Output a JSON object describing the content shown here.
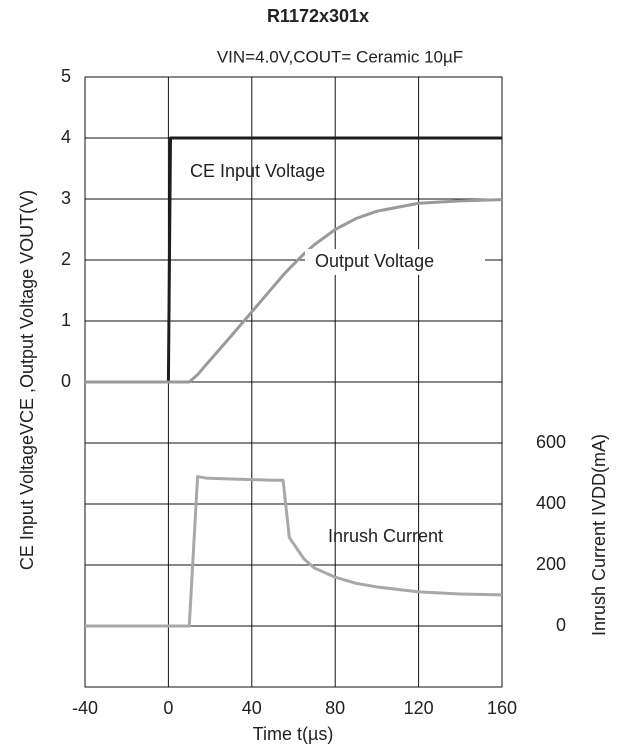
{
  "chart_data": {
    "type": "line",
    "title": "R1172x301x",
    "subtitle": "VIN=4.0V,COUT= Ceramic 10µF",
    "xlabel": "Time t(µs)",
    "ylabel": "CE Input VoltageVCE ,Output Voltage VOUT(V)",
    "y2label": "Inrush Current IVDD(mA)",
    "x": [
      -40,
      0,
      1,
      10,
      14,
      18,
      30,
      40,
      50,
      55,
      58,
      65,
      70,
      80,
      90,
      100,
      120,
      140,
      160
    ],
    "xlim": [
      -40,
      160
    ],
    "xticks": [
      -40,
      0,
      40,
      80,
      120,
      160
    ],
    "ylim": [
      -5,
      5
    ],
    "yticks": [
      0,
      1,
      2,
      3,
      4,
      5
    ],
    "y2lim": [
      -200,
      1800
    ],
    "y2ticks": [
      0,
      200,
      400,
      600
    ],
    "grid": true,
    "series": [
      {
        "name": "CE Input Voltage",
        "color": "#1e1e1e",
        "values": [
          0,
          0,
          4,
          4,
          4,
          4,
          4,
          4,
          4,
          4,
          4,
          4,
          4,
          4,
          4,
          4,
          4,
          4,
          4
        ]
      },
      {
        "name": "Output Voltage",
        "color": "#9a9a9a",
        "values": [
          0,
          0,
          0,
          0,
          0.12,
          0.28,
          0.75,
          1.15,
          1.55,
          1.75,
          1.86,
          2.1,
          2.25,
          2.5,
          2.68,
          2.8,
          2.93,
          2.97,
          2.99
        ]
      },
      {
        "name": "Inrush Current",
        "color": "#a8a8a8",
        "axis": "y2",
        "values": [
          0,
          0,
          0,
          0,
          490,
          485,
          482,
          480,
          478,
          478,
          290,
          220,
          190,
          160,
          140,
          128,
          112,
          105,
          102
        ]
      }
    ]
  }
}
